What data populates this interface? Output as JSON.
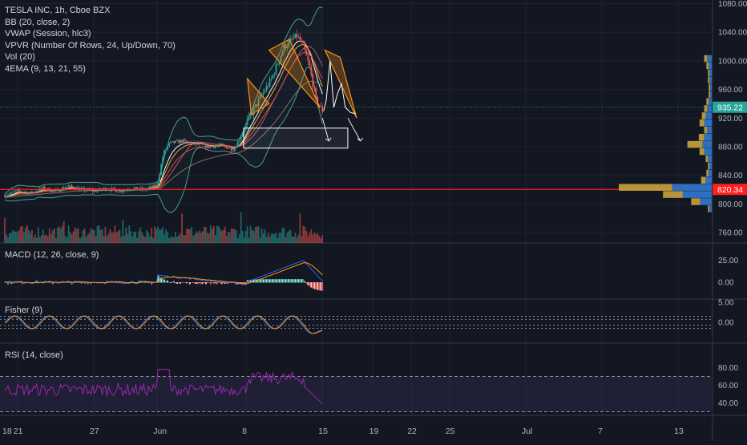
{
  "header": {
    "symbol_line": "TESLA INC, 1h, Cboe BZX",
    "indicators": [
      "BB (20, close, 2)",
      "VWAP (Session, hlc3)",
      "VPVR (Number Of Rows, 24, Up/Down, 70)",
      "Vol (20)",
      "4EMA (9, 13, 21, 55)"
    ]
  },
  "panes": {
    "macd": {
      "label": "MACD (12, 26, close, 9)",
      "ticks": [
        "25.00",
        "0.00"
      ],
      "tick_values": [
        25,
        0
      ]
    },
    "fisher": {
      "label": "Fisher (9)",
      "ticks": [
        "5.00",
        "0.00"
      ],
      "tick_values": [
        5,
        0
      ]
    },
    "rsi": {
      "label": "RSI (14, close)",
      "ticks": [
        "80.00",
        "60.00",
        "40.00"
      ],
      "tick_values": [
        80,
        60,
        40
      ]
    }
  },
  "price_axis": {
    "ticks": [
      "1080.00",
      "1040.00",
      "1000.00",
      "960.00",
      "920.00",
      "880.00",
      "840.00",
      "800.00",
      "760.00"
    ],
    "tick_values": [
      1080,
      1040,
      1000,
      960,
      920,
      880,
      840,
      800,
      760
    ],
    "current_price_label": "935.22",
    "current_price": 935.22,
    "hline_label": "820.34",
    "hline_price": 820.34
  },
  "time_axis": {
    "labels": [
      "18",
      "21",
      "27",
      "Jun",
      "8",
      "15",
      "19",
      "22",
      "25",
      "Jul",
      "7",
      "13"
    ],
    "positions": [
      -2,
      1,
      7,
      12,
      19,
      25,
      29,
      32,
      35,
      41,
      47,
      53
    ]
  },
  "colors": {
    "background": "#131722",
    "up": "#26a69a",
    "down": "#ef5350",
    "hline": "#ff1f1f",
    "current_price": "#26a69a",
    "bb": "#4c9e90",
    "vwap": "#aaaaaa",
    "ema_fast": "#ffffff",
    "ema_mid": "#f0a33c",
    "ema_slow": "#e04848",
    "ema_long": "#ffeb3b",
    "macd": "#2962ff",
    "signal": "#ff9800",
    "rsi": "#9c27b0",
    "triangle": "#f7931a",
    "box_stroke": "#ffffff",
    "vpvr_up": "#2e74c9",
    "vpvr_down": "#c9a23d"
  },
  "chart_data": {
    "type": "candlestick",
    "title": "TESLA INC, 1h, Cboe BZX",
    "xlabel": "",
    "ylabel": "",
    "x_unit": "trading days from May 18",
    "ylim": [
      740,
      1090
    ],
    "price_waypoints": [
      [
        0,
        812
      ],
      [
        1,
        818
      ],
      [
        2,
        815
      ],
      [
        3,
        822
      ],
      [
        4,
        818
      ],
      [
        5,
        825
      ],
      [
        6,
        820
      ],
      [
        7,
        818
      ],
      [
        8,
        822
      ],
      [
        9,
        818
      ],
      [
        10,
        822
      ],
      [
        11,
        820
      ],
      [
        12,
        826
      ],
      [
        12.5,
        872
      ],
      [
        13,
        885
      ],
      [
        14,
        888
      ],
      [
        15,
        884
      ],
      [
        16,
        880
      ],
      [
        17,
        882
      ],
      [
        18,
        876
      ],
      [
        18.5,
        892
      ],
      [
        19,
        912
      ],
      [
        20,
        945
      ],
      [
        21,
        975
      ],
      [
        22,
        1020
      ],
      [
        23,
        1035
      ],
      [
        23.5,
        1020
      ],
      [
        24,
        990
      ],
      [
        24.5,
        945
      ],
      [
        25,
        930
      ]
    ],
    "annotations": [
      {
        "type": "triangle",
        "points": [
          [
            19.1,
            975
          ],
          [
            20.8,
            940
          ],
          [
            19.4,
            925
          ]
        ]
      },
      {
        "type": "triangle",
        "points": [
          [
            20.8,
            1015
          ],
          [
            22.4,
            1030
          ],
          [
            24.8,
            935
          ]
        ]
      },
      {
        "type": "triangle",
        "points": [
          [
            25.2,
            1015
          ],
          [
            26.4,
            1005
          ],
          [
            27.7,
            920
          ]
        ]
      },
      {
        "type": "rectangle",
        "x": [
          18.8,
          27.0
        ],
        "y": [
          878,
          906
        ]
      },
      {
        "type": "arrow",
        "x": [
          25,
          25.5
        ],
        "y": [
          920,
          888
        ]
      },
      {
        "type": "arrow",
        "x": [
          27,
          28.0
        ],
        "y": [
          920,
          888
        ]
      }
    ],
    "horizontal_line": 820.34,
    "vpvr_rows": [
      {
        "price": 1003,
        "up": 6,
        "down": 4
      },
      {
        "price": 993,
        "up": 4,
        "down": 3
      },
      {
        "price": 983,
        "up": 3,
        "down": 2
      },
      {
        "price": 973,
        "up": 3,
        "down": 2
      },
      {
        "price": 963,
        "up": 2,
        "down": 2
      },
      {
        "price": 953,
        "up": 2,
        "down": 2
      },
      {
        "price": 943,
        "up": 4,
        "down": 3
      },
      {
        "price": 933,
        "up": 6,
        "down": 4
      },
      {
        "price": 923,
        "up": 8,
        "down": 5
      },
      {
        "price": 913,
        "up": 10,
        "down": 6
      },
      {
        "price": 903,
        "up": 6,
        "down": 4
      },
      {
        "price": 893,
        "up": 10,
        "down": 7
      },
      {
        "price": 883,
        "up": 12,
        "down": 20
      },
      {
        "price": 873,
        "up": 10,
        "down": 6
      },
      {
        "price": 863,
        "up": 5,
        "down": 3
      },
      {
        "price": 853,
        "up": 3,
        "down": 2
      },
      {
        "price": 843,
        "up": 4,
        "down": 3
      },
      {
        "price": 833,
        "up": 8,
        "down": 6
      },
      {
        "price": 823,
        "up": 52,
        "down": 70
      },
      {
        "price": 813,
        "up": 38,
        "down": 26
      },
      {
        "price": 803,
        "up": 15,
        "down": 12
      },
      {
        "price": 793,
        "up": 3,
        "down": 2
      }
    ]
  }
}
